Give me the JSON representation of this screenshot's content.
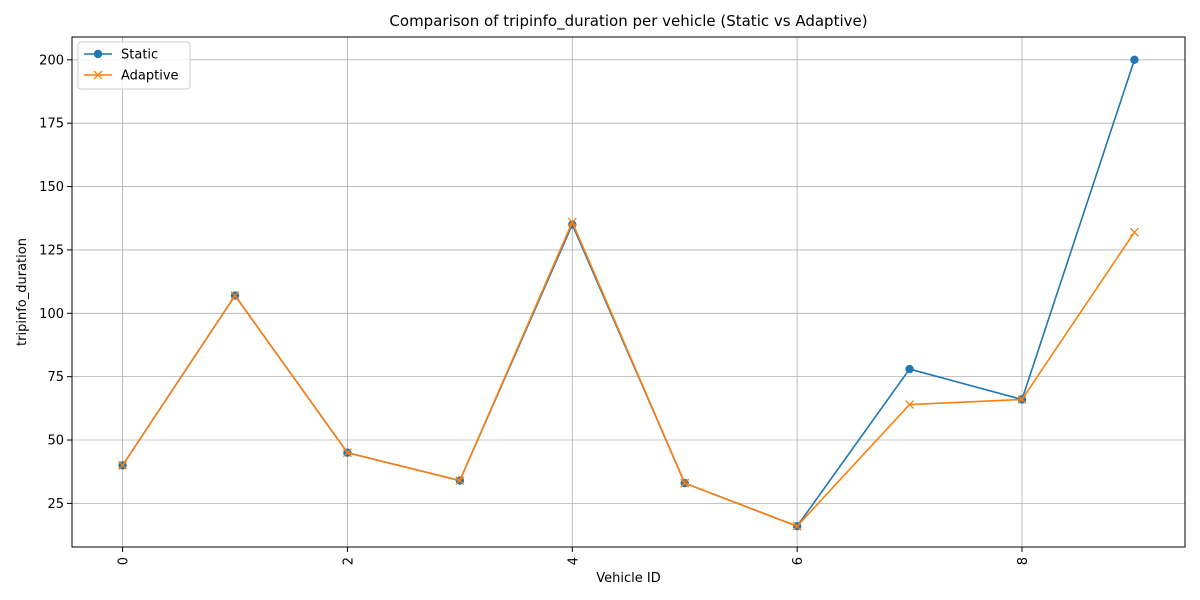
{
  "chart_data": {
    "type": "line",
    "title": "Comparison of tripinfo_duration per vehicle (Static vs Adaptive)",
    "xlabel": "Vehicle ID",
    "ylabel": "tripinfo_duration",
    "x": [
      0,
      1,
      2,
      3,
      4,
      5,
      6,
      7,
      8,
      9
    ],
    "xticks": [
      0,
      2,
      4,
      6,
      8
    ],
    "xlim": [
      -0.45,
      9.45
    ],
    "yticks": [
      25,
      50,
      75,
      100,
      125,
      150,
      175,
      200
    ],
    "ylim": [
      7.8,
      209
    ],
    "grid": true,
    "legend_position": "top-left",
    "series": [
      {
        "name": "Static",
        "marker": "circle",
        "color": "#1f77b4",
        "values": [
          40,
          107,
          45,
          34,
          135,
          33,
          16,
          78,
          66,
          200
        ]
      },
      {
        "name": "Adaptive",
        "marker": "x",
        "color": "#ff7f0e",
        "values": [
          40,
          107,
          45,
          34,
          136,
          33,
          16,
          64,
          66,
          132
        ]
      }
    ]
  }
}
